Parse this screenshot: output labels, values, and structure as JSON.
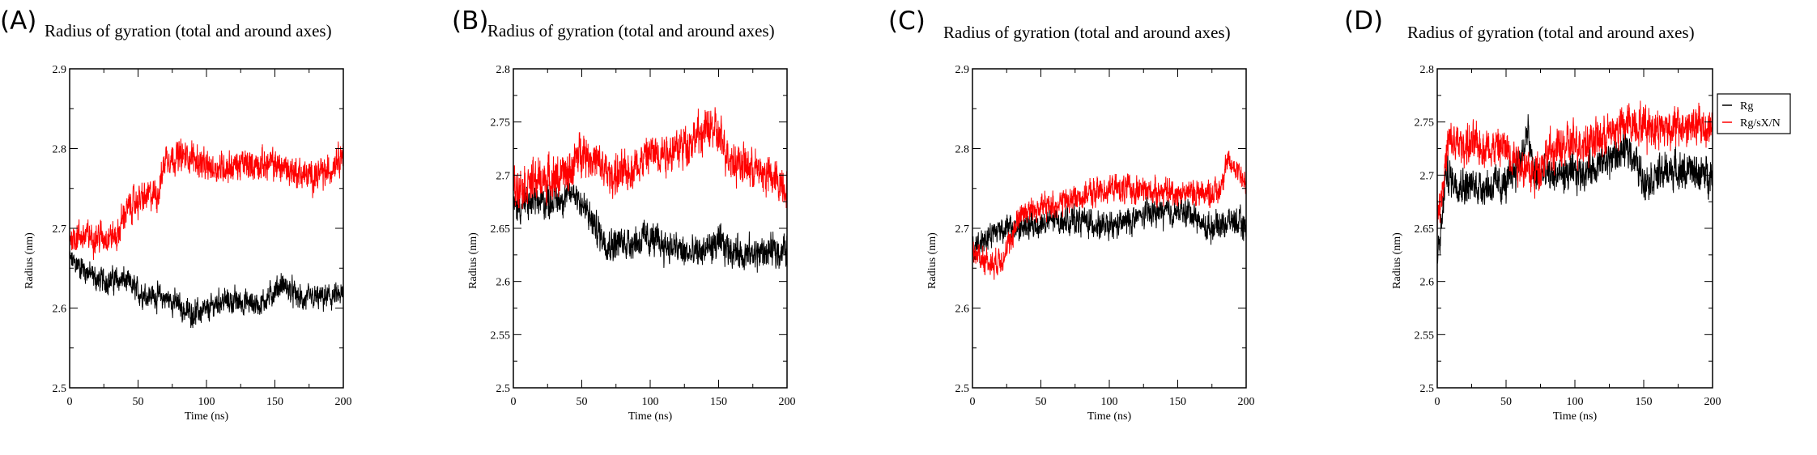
{
  "colors": {
    "Rg": "#000000",
    "Rg/sX/N": "#ff0000"
  },
  "legend": {
    "entries": [
      "Rg",
      "Rg/sX/N"
    ],
    "placement": "right-of-panel-D"
  },
  "chart_data": [
    {
      "panel_label": "(A)",
      "type": "line",
      "title": "Radius of gyration (total and around axes)",
      "xlabel": "Time (ns)",
      "ylabel": "Radius (nm)",
      "xlim": [
        0,
        200
      ],
      "ylim": [
        2.5,
        2.9
      ],
      "xticks": [
        "0",
        "50",
        "100",
        "150",
        "200"
      ],
      "yticks": [
        "2.5",
        "2.6",
        "2.7",
        "2.8",
        "2.9"
      ],
      "series": [
        {
          "name": "Rg",
          "noise": 0.012,
          "trend": [
            [
              0,
              2.66
            ],
            [
              10,
              2.65
            ],
            [
              20,
              2.635
            ],
            [
              40,
              2.635
            ],
            [
              50,
              2.62
            ],
            [
              75,
              2.61
            ],
            [
              85,
              2.595
            ],
            [
              100,
              2.595
            ],
            [
              110,
              2.61
            ],
            [
              140,
              2.605
            ],
            [
              155,
              2.63
            ],
            [
              170,
              2.61
            ],
            [
              200,
              2.615
            ]
          ]
        },
        {
          "name": "Rg/sX/N",
          "noise": 0.015,
          "trend": [
            [
              0,
              2.69
            ],
            [
              20,
              2.69
            ],
            [
              35,
              2.69
            ],
            [
              40,
              2.72
            ],
            [
              50,
              2.735
            ],
            [
              65,
              2.745
            ],
            [
              70,
              2.79
            ],
            [
              90,
              2.79
            ],
            [
              100,
              2.775
            ],
            [
              130,
              2.78
            ],
            [
              150,
              2.78
            ],
            [
              175,
              2.765
            ],
            [
              190,
              2.77
            ],
            [
              195,
              2.79
            ],
            [
              200,
              2.795
            ]
          ]
        }
      ]
    },
    {
      "panel_label": "(B)",
      "type": "line",
      "title": "Radius of gyration (total and around axes)",
      "xlabel": "Time (ns)",
      "ylabel": "Radius (nm)",
      "xlim": [
        0,
        200
      ],
      "ylim": [
        2.5,
        2.8
      ],
      "xticks": [
        "0",
        "50",
        "100",
        "150",
        "200"
      ],
      "yticks": [
        "2.5",
        "2.55",
        "2.6",
        "2.65",
        "2.7",
        "2.75",
        "2.8"
      ],
      "series": [
        {
          "name": "Rg",
          "noise": 0.012,
          "trend": [
            [
              0,
              2.67
            ],
            [
              40,
              2.68
            ],
            [
              45,
              2.685
            ],
            [
              60,
              2.65
            ],
            [
              70,
              2.635
            ],
            [
              100,
              2.64
            ],
            [
              130,
              2.625
            ],
            [
              150,
              2.635
            ],
            [
              170,
              2.625
            ],
            [
              200,
              2.63
            ]
          ]
        },
        {
          "name": "Rg/sX/N",
          "noise": 0.015,
          "trend": [
            [
              0,
              2.69
            ],
            [
              40,
              2.7
            ],
            [
              50,
              2.725
            ],
            [
              70,
              2.7
            ],
            [
              80,
              2.7
            ],
            [
              100,
              2.72
            ],
            [
              120,
              2.725
            ],
            [
              145,
              2.745
            ],
            [
              160,
              2.715
            ],
            [
              185,
              2.7
            ],
            [
              200,
              2.69
            ]
          ]
        }
      ]
    },
    {
      "panel_label": "(C)",
      "type": "line",
      "title": "Radius of gyration (total and around axes)",
      "xlabel": "Time (ns)",
      "ylabel": "Radius (nm)",
      "xlim": [
        0,
        200
      ],
      "ylim": [
        2.5,
        2.9
      ],
      "xticks": [
        "0",
        "50",
        "100",
        "150",
        "200"
      ],
      "yticks": [
        "2.5",
        "2.6",
        "2.7",
        "2.8",
        "2.9"
      ],
      "series": [
        {
          "name": "Rg",
          "noise": 0.013,
          "trend": [
            [
              0,
              2.67
            ],
            [
              10,
              2.69
            ],
            [
              20,
              2.7
            ],
            [
              40,
              2.7
            ],
            [
              60,
              2.71
            ],
            [
              80,
              2.71
            ],
            [
              100,
              2.7
            ],
            [
              130,
              2.72
            ],
            [
              160,
              2.72
            ],
            [
              170,
              2.7
            ],
            [
              190,
              2.71
            ],
            [
              200,
              2.7
            ]
          ]
        },
        {
          "name": "Rg/sX/N",
          "noise": 0.013,
          "trend": [
            [
              0,
              2.67
            ],
            [
              10,
              2.66
            ],
            [
              15,
              2.655
            ],
            [
              25,
              2.67
            ],
            [
              35,
              2.72
            ],
            [
              60,
              2.73
            ],
            [
              100,
              2.75
            ],
            [
              150,
              2.745
            ],
            [
              180,
              2.745
            ],
            [
              185,
              2.78
            ],
            [
              195,
              2.775
            ],
            [
              200,
              2.75
            ]
          ]
        }
      ]
    },
    {
      "panel_label": "(D)",
      "type": "line",
      "title": "Radius of gyration (total and around axes)",
      "xlabel": "Time (ns)",
      "ylabel": "Radius (nm)",
      "xlim": [
        0,
        200
      ],
      "ylim": [
        2.5,
        2.8
      ],
      "xticks": [
        "0",
        "50",
        "100",
        "150",
        "200"
      ],
      "yticks": [
        "2.5",
        "2.55",
        "2.6",
        "2.65",
        "2.7",
        "2.75",
        "2.8"
      ],
      "series": [
        {
          "name": "Rg",
          "noise": 0.013,
          "trend": [
            [
              0,
              2.62
            ],
            [
              3,
              2.65
            ],
            [
              6,
              2.7
            ],
            [
              20,
              2.69
            ],
            [
              50,
              2.69
            ],
            [
              62,
              2.72
            ],
            [
              66,
              2.74
            ],
            [
              70,
              2.7
            ],
            [
              100,
              2.7
            ],
            [
              125,
              2.715
            ],
            [
              140,
              2.725
            ],
            [
              150,
              2.695
            ],
            [
              170,
              2.705
            ],
            [
              200,
              2.7
            ]
          ]
        },
        {
          "name": "Rg/sX/N",
          "noise": 0.015,
          "trend": [
            [
              0,
              2.66
            ],
            [
              5,
              2.7
            ],
            [
              8,
              2.73
            ],
            [
              50,
              2.725
            ],
            [
              70,
              2.7
            ],
            [
              80,
              2.72
            ],
            [
              100,
              2.73
            ],
            [
              120,
              2.735
            ],
            [
              140,
              2.75
            ],
            [
              160,
              2.745
            ],
            [
              200,
              2.745
            ]
          ]
        }
      ]
    }
  ]
}
